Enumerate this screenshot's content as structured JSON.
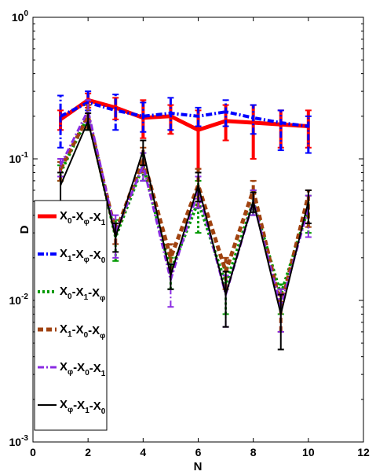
{
  "chart_data": {
    "type": "line",
    "title": "",
    "xlabel": "N",
    "ylabel": "D",
    "xlim": [
      0,
      12
    ],
    "ylim": [
      0.001,
      1
    ],
    "yscale": "log",
    "xticks": [
      0,
      2,
      4,
      6,
      8,
      10,
      12
    ],
    "yticks": [
      {
        "value": 0.001,
        "base": "10",
        "exp": "-3"
      },
      {
        "value": 0.01,
        "base": "10",
        "exp": "-2"
      },
      {
        "value": 0.1,
        "base": "10",
        "exp": "-1"
      },
      {
        "value": 1,
        "base": "10",
        "exp": "0"
      }
    ],
    "grid": false,
    "legend_position": "left",
    "x": [
      1,
      2,
      3,
      4,
      5,
      6,
      7,
      8,
      9,
      10
    ],
    "series": [
      {
        "name": "X0-Xφ-X1",
        "label_parts": [
          [
            "X",
            "0"
          ],
          [
            "X",
            "φ"
          ],
          [
            "X",
            "1"
          ]
        ],
        "color": "#ff0000",
        "dash": "solid",
        "width": 5,
        "values": [
          0.19,
          0.26,
          0.23,
          0.195,
          0.2,
          0.16,
          0.185,
          0.18,
          0.175,
          0.17
        ],
        "err_low": [
          0.16,
          0.23,
          0.19,
          0.14,
          0.15,
          0.085,
          0.135,
          0.1,
          0.12,
          0.12
        ],
        "err_high": [
          0.22,
          0.29,
          0.27,
          0.26,
          0.24,
          0.22,
          0.24,
          0.24,
          0.22,
          0.22
        ]
      },
      {
        "name": "X1-Xφ-X0",
        "label_parts": [
          [
            "X",
            "1"
          ],
          [
            "X",
            "φ"
          ],
          [
            "X",
            "0"
          ]
        ],
        "color": "#0000ff",
        "dash": "dashdot",
        "width": 4,
        "values": [
          0.2,
          0.25,
          0.22,
          0.2,
          0.21,
          0.2,
          0.215,
          0.195,
          0.18,
          0.17
        ],
        "err_low": [
          0.12,
          0.22,
          0.16,
          0.155,
          0.16,
          0.17,
          0.17,
          0.15,
          0.115,
          0.11
        ],
        "err_high": [
          0.28,
          0.3,
          0.285,
          0.25,
          0.27,
          0.23,
          0.26,
          0.24,
          0.22,
          0.2
        ]
      },
      {
        "name": "X0-X1-Xφ",
        "label_parts": [
          [
            "X",
            "0"
          ],
          [
            "X",
            "1"
          ],
          [
            "X",
            "φ"
          ]
        ],
        "color": "#009900",
        "dash": "dotted",
        "width": 4,
        "values": [
          0.08,
          0.2,
          0.028,
          0.09,
          0.016,
          0.05,
          0.013,
          0.05,
          0.011,
          0.045
        ],
        "err_low": [
          0.07,
          0.16,
          0.019,
          0.07,
          0.012,
          0.03,
          0.008,
          0.04,
          0.008,
          0.03
        ],
        "err_high": [
          0.09,
          0.24,
          0.037,
          0.11,
          0.02,
          0.07,
          0.017,
          0.06,
          0.013,
          0.055
        ]
      },
      {
        "name": "X1-X0-Xφ",
        "label_parts": [
          [
            "X",
            "1"
          ],
          [
            "X",
            "0"
          ],
          [
            "X",
            "φ"
          ]
        ],
        "color": "#a0420f",
        "dash": "dashed",
        "width": 5,
        "values": [
          0.085,
          0.2,
          0.03,
          0.1,
          0.02,
          0.065,
          0.016,
          0.06,
          0.009,
          0.055
        ],
        "err_low": [
          0.07,
          0.165,
          0.025,
          0.08,
          0.016,
          0.045,
          0.012,
          0.045,
          0.006,
          0.033
        ],
        "err_high": [
          0.095,
          0.24,
          0.035,
          0.12,
          0.025,
          0.085,
          0.02,
          0.07,
          0.012,
          0.06
        ]
      },
      {
        "name": "Xφ-X0-X1",
        "label_parts": [
          [
            "X",
            "φ"
          ],
          [
            "X",
            "0"
          ],
          [
            "X",
            "1"
          ]
        ],
        "color": "#8a2be2",
        "dash": "dashdot",
        "width": 3,
        "values": [
          0.09,
          0.22,
          0.03,
          0.09,
          0.014,
          0.06,
          0.011,
          0.05,
          0.009,
          0.045
        ],
        "err_low": [
          0.075,
          0.18,
          0.02,
          0.07,
          0.009,
          0.045,
          0.0065,
          0.04,
          0.006,
          0.028
        ],
        "err_high": [
          0.1,
          0.26,
          0.04,
          0.11,
          0.016,
          0.075,
          0.015,
          0.06,
          0.012,
          0.055
        ]
      },
      {
        "name": "Xφ-X1-X0",
        "label_parts": [
          [
            "X",
            "φ"
          ],
          [
            "X",
            "1"
          ],
          [
            "X",
            "0"
          ]
        ],
        "color": "#000000",
        "dash": "solid",
        "width": 2,
        "values": [
          0.065,
          0.185,
          0.028,
          0.115,
          0.015,
          0.065,
          0.011,
          0.05,
          0.008,
          0.05
        ],
        "err_low": [
          0.05,
          0.16,
          0.022,
          0.09,
          0.012,
          0.05,
          0.0065,
          0.042,
          0.0045,
          0.035
        ],
        "err_high": [
          0.08,
          0.21,
          0.035,
          0.135,
          0.018,
          0.08,
          0.016,
          0.058,
          0.011,
          0.06
        ]
      }
    ]
  }
}
